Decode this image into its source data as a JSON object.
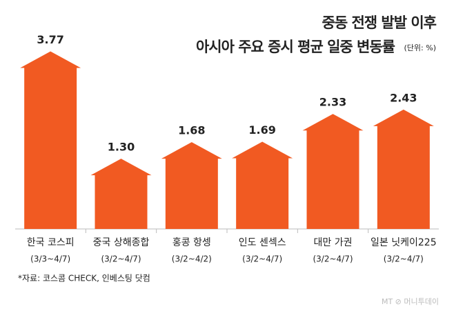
{
  "chart_data": {
    "type": "bar",
    "title": [
      "중동 전쟁 발발 이후",
      "아시아 주요 증시 평균 일중 변동률"
    ],
    "unit": "(단위: %)",
    "categories": [
      "한국 코스피",
      "중국 상해종합",
      "홍콩 항셍",
      "인도 센섹스",
      "대만 가권",
      "일본 닛케이225"
    ],
    "periods": [
      "(3/3~4/7)",
      "(3/2~4/7)",
      "(3/2~4/2)",
      "(3/2~4/7)",
      "(3/2~4/7)",
      "(3/2~4/7)"
    ],
    "values": [
      3.77,
      1.3,
      1.68,
      1.69,
      2.33,
      2.43
    ],
    "value_labels": [
      "3.77",
      "1.30",
      "1.68",
      "1.69",
      "2.33",
      "2.43"
    ],
    "color": "#f15a22",
    "source": "*자료: 코스콤 CHECK, 인베스팅 닷컴",
    "watermark": "MT ⊘ 머니투데이"
  }
}
